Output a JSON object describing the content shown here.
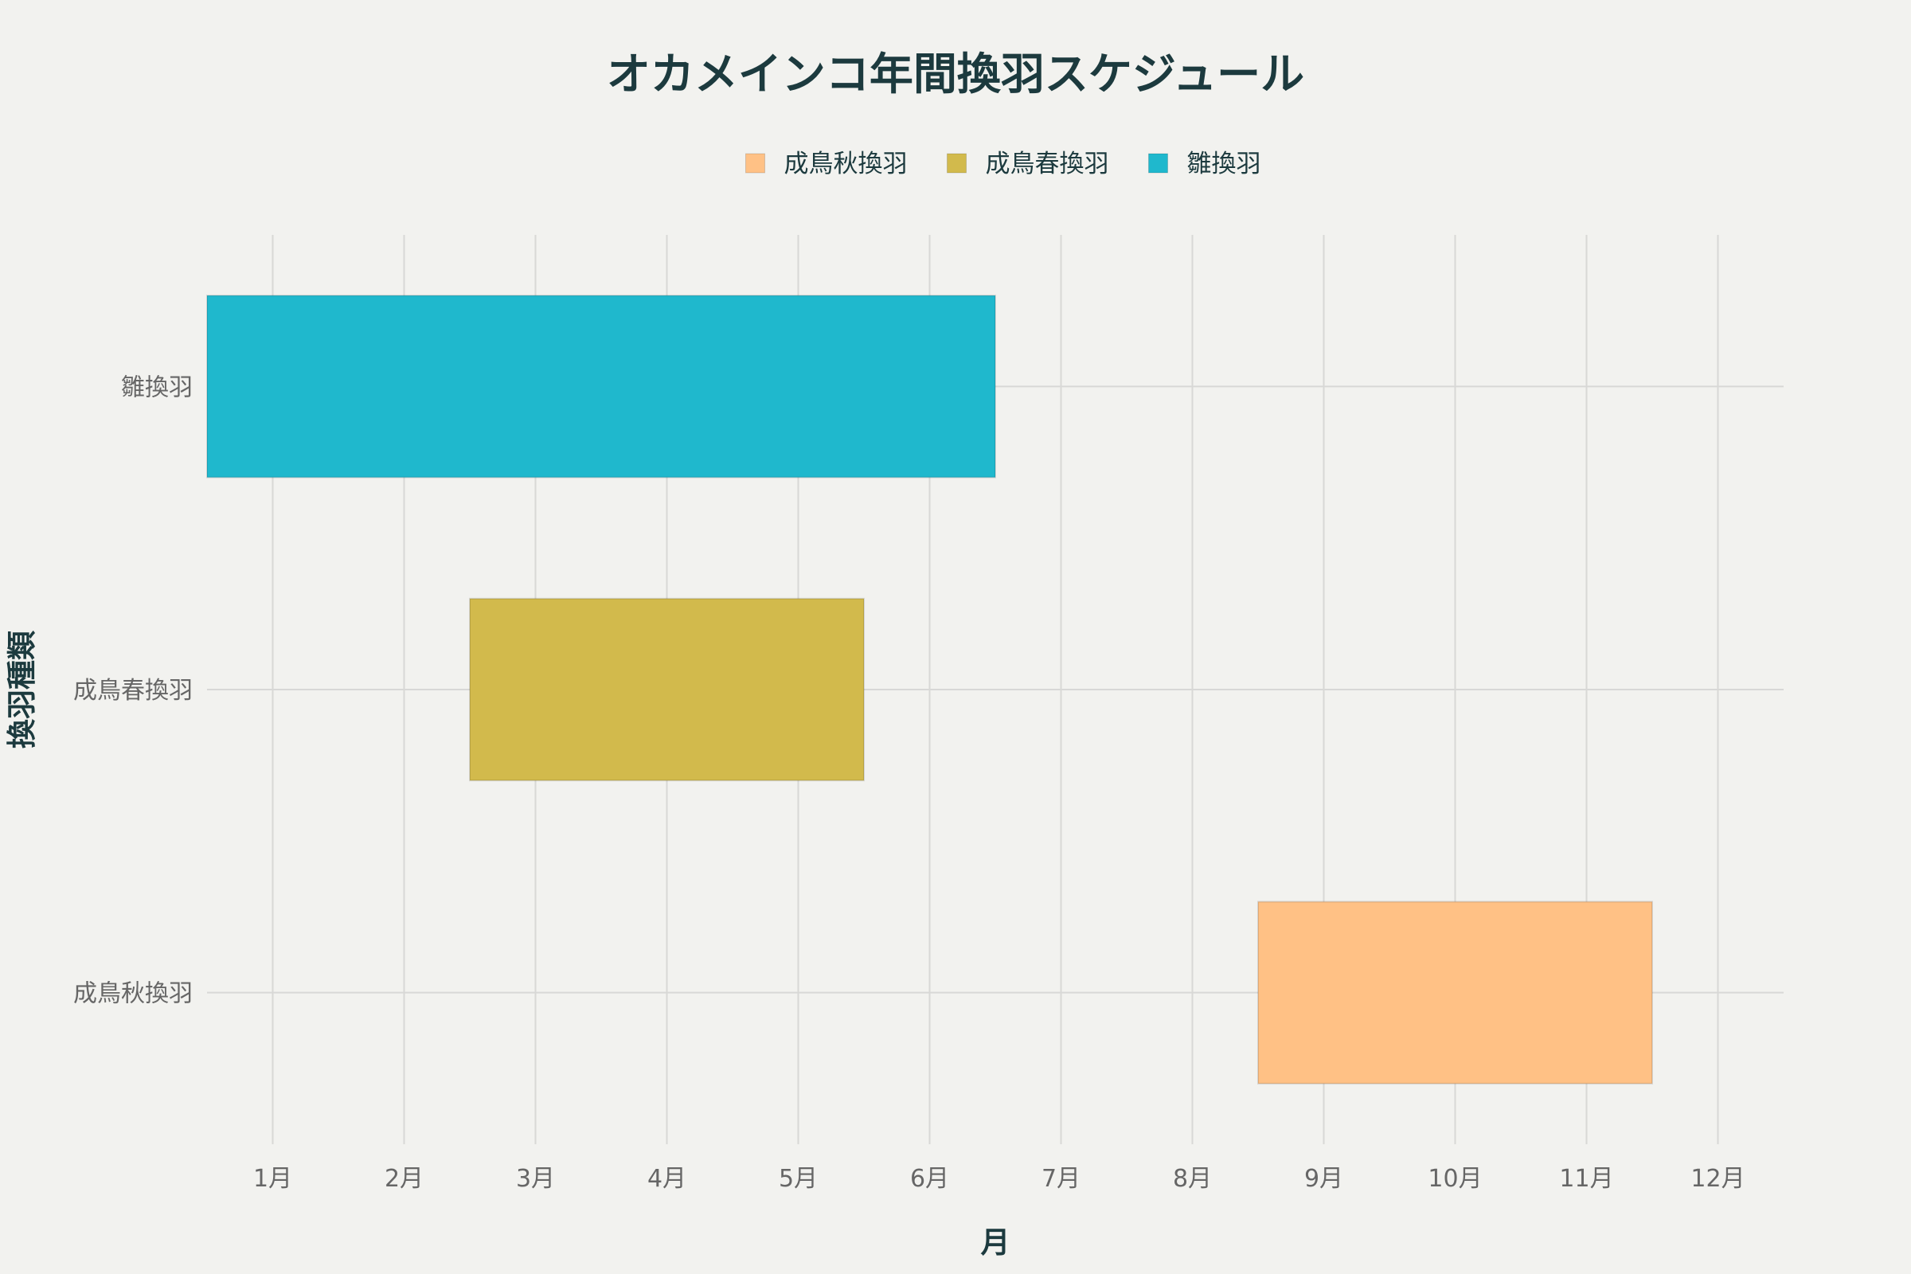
{
  "chart_data": {
    "type": "bar",
    "orientation": "horizontal",
    "title": "オカメインコ年間換羽スケジュール",
    "xlabel": "月",
    "ylabel": "換羽種類",
    "x_ticks": [
      "1月",
      "2月",
      "3月",
      "4月",
      "5月",
      "6月",
      "7月",
      "8月",
      "9月",
      "10月",
      "11月",
      "12月"
    ],
    "categories": [
      "雛換羽",
      "成鳥春換羽",
      "成鳥秋換羽"
    ],
    "series": [
      {
        "name": "成鳥秋換羽",
        "category": "成鳥秋換羽",
        "start": 8.5,
        "end": 11.5,
        "color": "#ffc185"
      },
      {
        "name": "成鳥春換羽",
        "category": "成鳥春換羽",
        "start": 2.5,
        "end": 5.5,
        "color": "#d2ba4c"
      },
      {
        "name": "雛換羽",
        "category": "雛換羽",
        "start": 0.5,
        "end": 6.5,
        "color": "#1fb8cd"
      }
    ],
    "xlim": [
      0.5,
      12.5
    ],
    "grid": true,
    "legend_position": "top-center"
  }
}
